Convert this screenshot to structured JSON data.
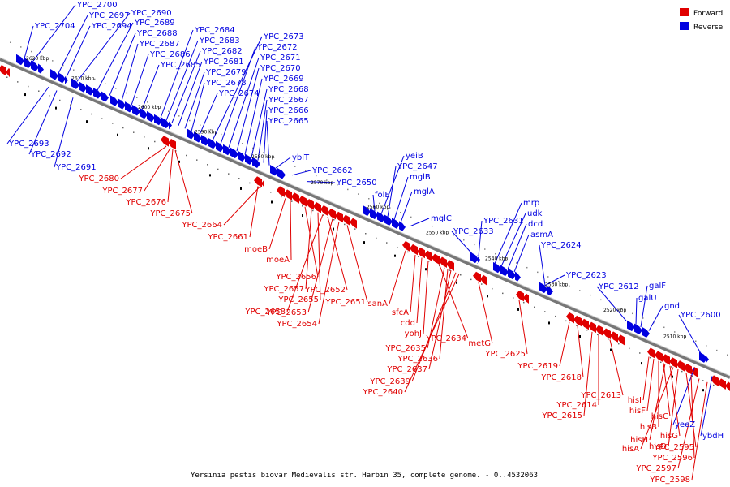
{
  "caption": "Yersinia pestis biovar Medievalis str. Harbin 35, complete genome. - 0..4532063",
  "legend": [
    {
      "label": "Forward",
      "color": "#e00000"
    },
    {
      "label": "Reverse",
      "color": "#0000e0"
    }
  ],
  "ticks": [
    "2620 kbp",
    "2610 kbp",
    "2600 kbp",
    "2590 kbp",
    "2580 kbp",
    "2570 kbp",
    "2560 kbp",
    "2550 kbp",
    "2540 kbp",
    "2530 kbp",
    "2520 kbp",
    "2510 kbp"
  ],
  "reverse_labels_above": [
    "YPC_2700",
    "YPC_2704",
    "YPC_2697",
    "YPC_2694",
    "YPC_2690",
    "YPC_2689",
    "YPC_2688",
    "YPC_2687",
    "YPC_2686",
    "YPC_2685",
    "YPC_2684",
    "YPC_2683",
    "YPC_2682",
    "YPC_2681",
    "YPC_2679",
    "YPC_2678",
    "YPC_2674",
    "YPC_2673",
    "YPC_2672",
    "YPC_2671",
    "YPC_2670",
    "YPC_2669",
    "YPC_2668",
    "YPC_2667",
    "YPC_2666",
    "YPC_2665",
    "ybiT",
    "YPC_2662",
    "YPC_2650",
    "folE",
    "yeiB",
    "YPC_2647",
    "mglB",
    "mglA",
    "mglC",
    "YPC_2633",
    "YPC_2631",
    "mrp",
    "udk",
    "dcd",
    "asmA",
    "YPC_2624",
    "YPC_2623",
    "YPC_2612",
    "galF",
    "galU",
    "gnd",
    "YPC_2600"
  ],
  "reverse_labels_below": [
    "YPC_2693",
    "YPC_2692",
    "YPC_2691",
    "yeeZ",
    "ybdH"
  ],
  "forward_labels": [
    "YPC_2680",
    "YPC_2677",
    "YPC_2676",
    "YPC_2675",
    "YPC_2664",
    "YPC_2661",
    "moeB",
    "moeA",
    "YPC_2656",
    "YPC_2657",
    "YPC_2655",
    "YPC_2652",
    "YPC_2651",
    "YPC_2658",
    "YPC_2653",
    "YPC_2654",
    "sanA",
    "sfcA",
    "cdd",
    "yohJ",
    "YPC_2634",
    "YPC_2635",
    "YPC_2636",
    "YPC_2637",
    "YPC_2639",
    "YPC_2640",
    "metG",
    "YPC_2625",
    "YPC_2619",
    "YPC_2618",
    "YPC_2614",
    "YPC_2615",
    "YPC_2613",
    "hisI",
    "hisF",
    "hisB",
    "hisC",
    "hisH",
    "hisG",
    "hisA",
    "hisD",
    "YPC_2595",
    "YPC_2596",
    "YPC_2597",
    "YPC_2598"
  ]
}
